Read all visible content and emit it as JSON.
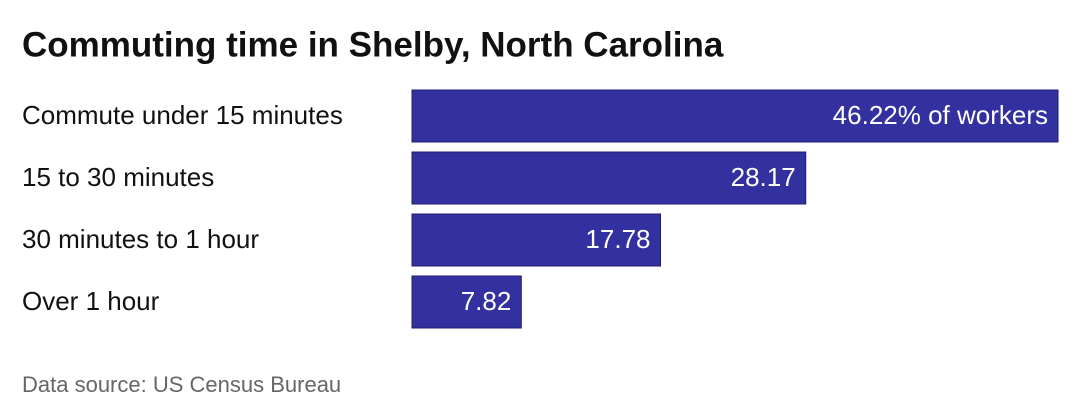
{
  "chart_data": {
    "type": "bar",
    "orientation": "horizontal",
    "title": "Commuting time in Shelby, North Carolina",
    "categories": [
      "Commute under 15 minutes",
      "15 to 30 minutes",
      "30 minutes to 1 hour",
      "Over 1 hour"
    ],
    "values": [
      46.22,
      28.17,
      17.78,
      7.82
    ],
    "value_labels": [
      "46.22% of workers",
      "28.17",
      "17.78",
      "7.82"
    ],
    "color": "#3330a0",
    "source": "Data source: US Census Bureau"
  }
}
